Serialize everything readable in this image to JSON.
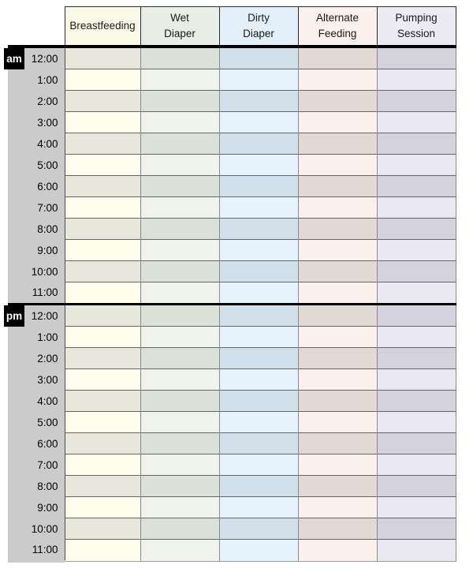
{
  "table": {
    "columns": [
      {
        "id": "breastfeeding",
        "label": "Breastfeeding",
        "lines": [
          "Breastfeeding"
        ],
        "header_bg": "#fbfae7",
        "row_light": "#fffdee",
        "row_dark": "#e8e7db"
      },
      {
        "id": "wet-diaper",
        "label": "Wet Diaper",
        "lines": [
          "Wet",
          "Diaper"
        ],
        "header_bg": "#e9efe6",
        "row_light": "#eff3eb",
        "row_dark": "#dce1d8"
      },
      {
        "id": "dirty-diaper",
        "label": "Dirty Diaper",
        "lines": [
          "Dirty",
          "Diaper"
        ],
        "header_bg": "#e3f0fa",
        "row_light": "#e6f3fc",
        "row_dark": "#d1e0ea"
      },
      {
        "id": "alternate-feeding",
        "label": "Alternate Feeding",
        "lines": [
          "Alternate",
          "Feeding"
        ],
        "header_bg": "#fdf1ed",
        "row_light": "#fbf0ec",
        "row_dark": "#e3d9d4"
      },
      {
        "id": "pumping-session",
        "label": "Pumping Session",
        "lines": [
          "Pumping",
          "Session"
        ],
        "header_bg": "#eceaf3",
        "row_light": "#e9e8f3",
        "row_dark": "#d3d2de"
      }
    ],
    "sections": [
      {
        "period": "am",
        "times": [
          "12:00",
          "1:00",
          "2:00",
          "3:00",
          "4:00",
          "5:00",
          "6:00",
          "7:00",
          "8:00",
          "9:00",
          "10:00",
          "11:00"
        ]
      },
      {
        "period": "pm",
        "times": [
          "12:00",
          "1:00",
          "2:00",
          "3:00",
          "4:00",
          "5:00",
          "6:00",
          "7:00",
          "8:00",
          "9:00",
          "10:00",
          "11:00"
        ]
      }
    ]
  },
  "colors": {
    "time_column_bg": "#cbcbcb",
    "badge_bg": "#000000",
    "badge_text": "#ffffff",
    "grid_line": "#666666",
    "column_line": "#8a8a8a",
    "section_line": "#000000",
    "header_border": "#2b2b2b",
    "text": "#1a1a1a"
  }
}
